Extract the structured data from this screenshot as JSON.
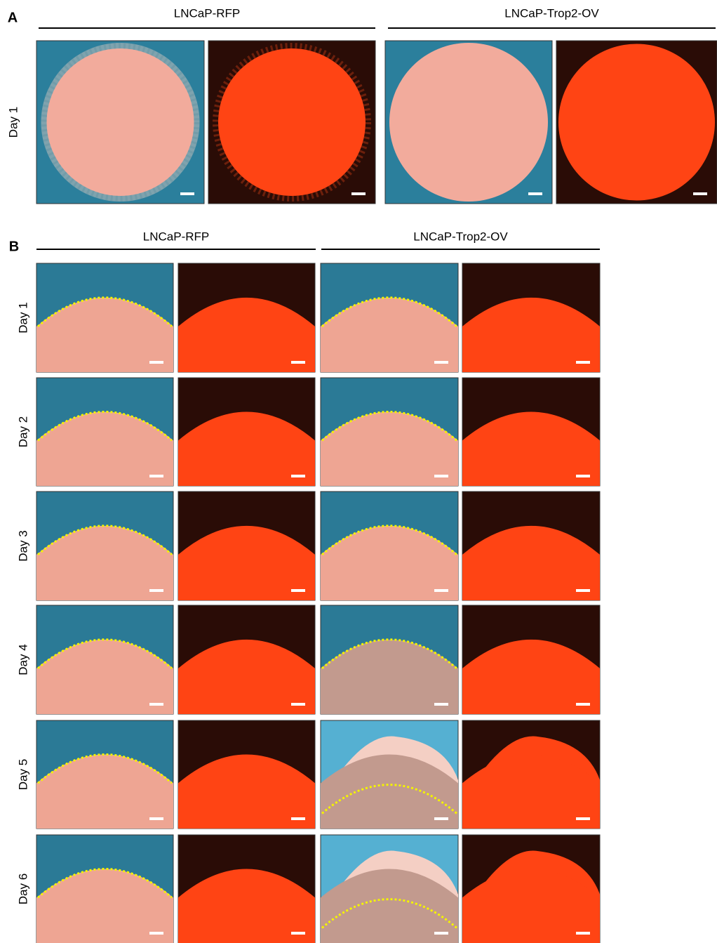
{
  "panels": [
    {
      "label": "A",
      "groups": [
        "LNCaP-RFP",
        "LNCaP-Trop2-OV"
      ],
      "rows": [
        "Day 1"
      ]
    },
    {
      "label": "B",
      "groups": [
        "LNCaP-RFP",
        "LNCaP-Trop2-OV"
      ],
      "rows": [
        "Day 1",
        "Day 2",
        "Day 3",
        "Day 4",
        "Day 5",
        "Day 6"
      ]
    }
  ]
}
